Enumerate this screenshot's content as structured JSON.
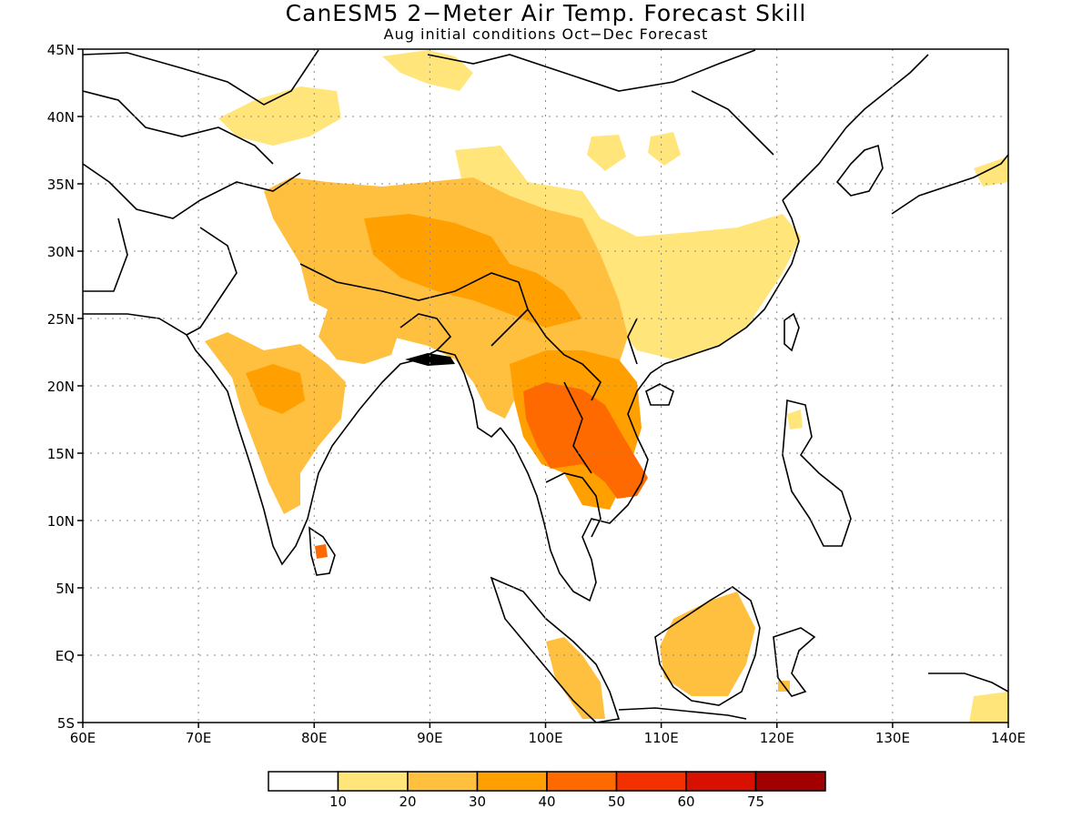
{
  "title": "CanESM5 2−Meter Air Temp. Forecast Skill",
  "subtitle": "Aug initial conditions  Oct−Dec Forecast",
  "map": {
    "lon_ticks": [
      "60E",
      "70E",
      "80E",
      "90E",
      "100E",
      "110E",
      "120E",
      "130E",
      "140E"
    ],
    "lat_ticks": [
      "45N",
      "40N",
      "35N",
      "30N",
      "25N",
      "20N",
      "15N",
      "10N",
      "5N",
      "EQ",
      "5S"
    ],
    "lon_range": [
      60,
      140
    ],
    "lat_range": [
      -5,
      45
    ],
    "grid": true,
    "grid_style": "dotted"
  },
  "colorbar": {
    "colors": [
      "#ffffff",
      "#ffe57a",
      "#ffc040",
      "#ffa000",
      "#ff6a00",
      "#f23000",
      "#d81000",
      "#a00000"
    ],
    "tick_labels": [
      "10",
      "20",
      "30",
      "40",
      "50",
      "60",
      "75"
    ]
  },
  "skill_regions": [
    {
      "name": "india",
      "level": 2
    },
    {
      "name": "india-core",
      "level": 3
    },
    {
      "name": "tibet",
      "level": 2
    },
    {
      "name": "tibet-core",
      "level": 3
    },
    {
      "name": "mongolia",
      "level": 1
    },
    {
      "name": "china",
      "level": 1
    },
    {
      "name": "south-china",
      "level": 2
    },
    {
      "name": "indochina",
      "level": 3
    },
    {
      "name": "thailand-laos",
      "level": 4
    },
    {
      "name": "sumatra",
      "level": 2
    },
    {
      "name": "borneo",
      "level": 2
    },
    {
      "name": "sri-lanka",
      "level": 4
    }
  ]
}
